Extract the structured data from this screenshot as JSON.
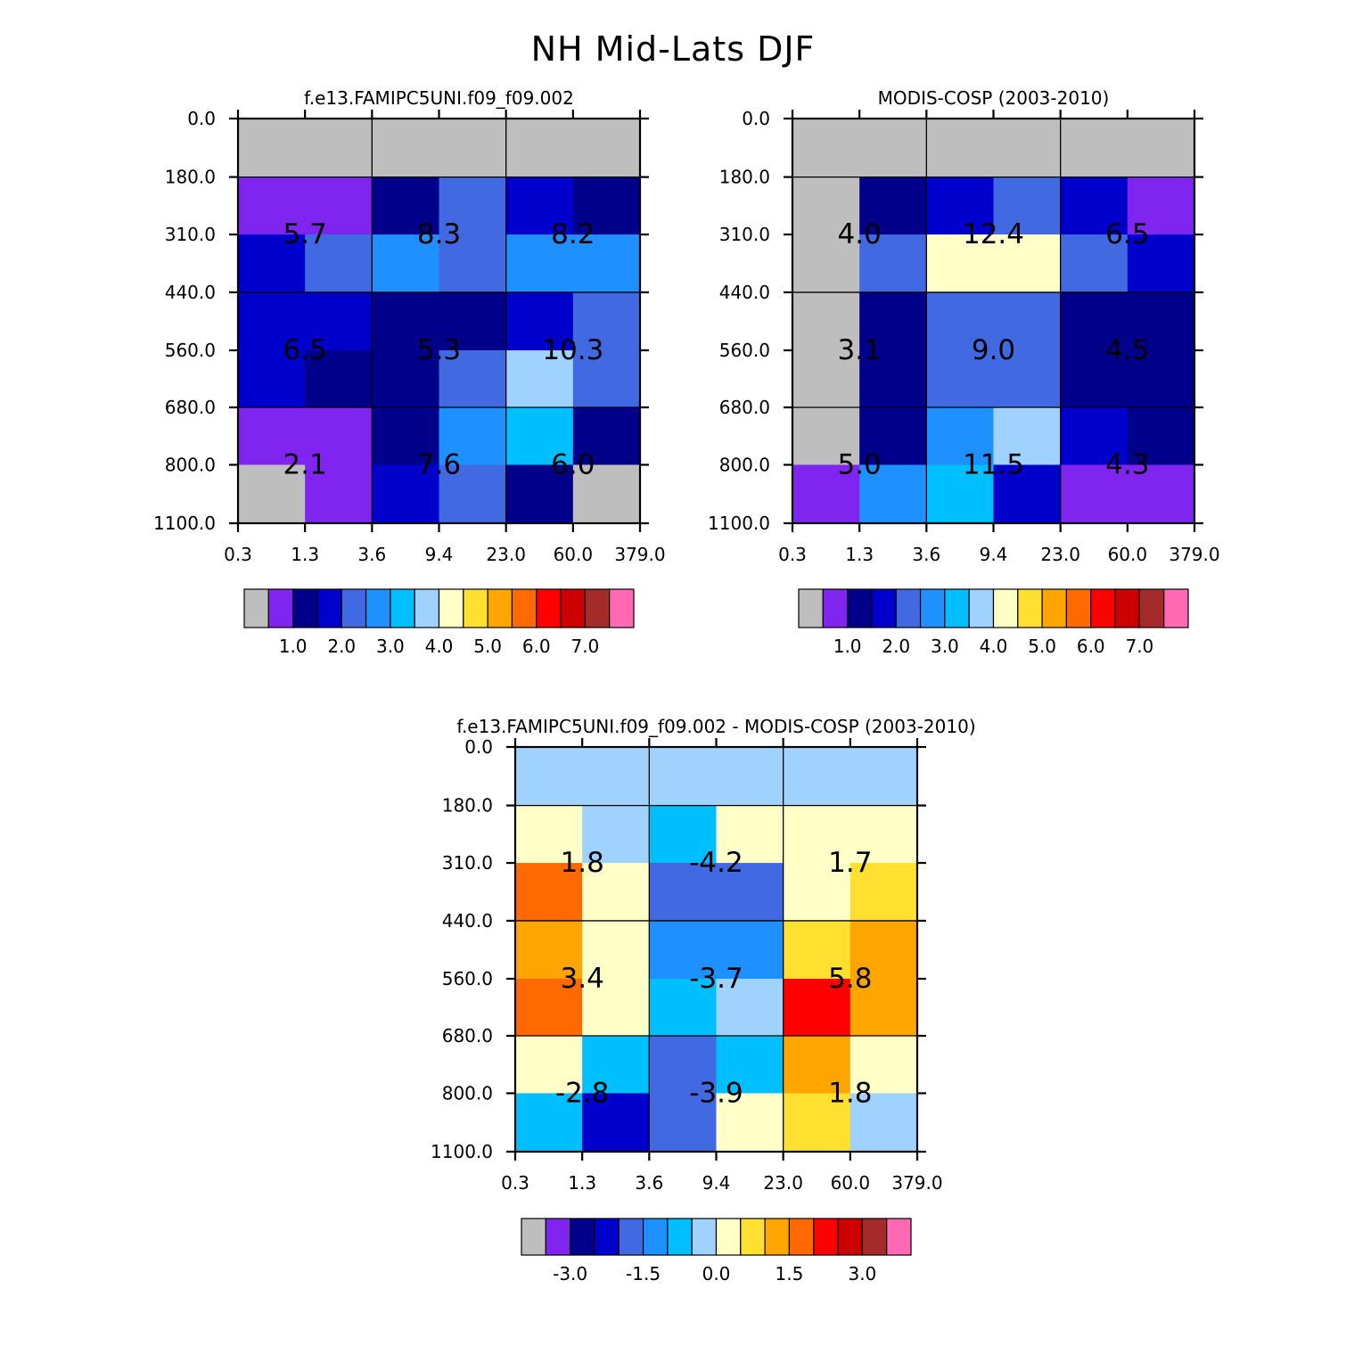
{
  "figure_title": "NH Mid-Lats DJF",
  "palette": [
    "#bebebe",
    "#8025ef",
    "#00008b",
    "#0000cd",
    "#4169e1",
    "#1e90ff",
    "#00bfff",
    "#a0d2ff",
    "#ffffc8",
    "#ffe030",
    "#ffa500",
    "#ff6a00",
    "#ff0000",
    "#cd0000",
    "#a52a2a",
    "#ff69b4"
  ],
  "chart_data": [
    {
      "type": "heatmap",
      "title": "f.e13.FAMIPC5UNI.f09_f09.002",
      "x_tick_labels": [
        "0.3",
        "1.3",
        "3.6",
        "9.4",
        "23.0",
        "60.0",
        "379.0"
      ],
      "y_tick_labels": [
        "0.0",
        "180.0",
        "310.0",
        "440.0",
        "560.0",
        "680.0",
        "800.0",
        "1100.0"
      ],
      "cell_color_index": [
        [
          0,
          0,
          0,
          0,
          0,
          0
        ],
        [
          1,
          1,
          2,
          4,
          3,
          2
        ],
        [
          3,
          4,
          5,
          4,
          5,
          5
        ],
        [
          3,
          3,
          2,
          2,
          3,
          4
        ],
        [
          3,
          2,
          2,
          4,
          7,
          4
        ],
        [
          1,
          1,
          2,
          5,
          6,
          2
        ],
        [
          0,
          1,
          3,
          4,
          2,
          0
        ]
      ],
      "block_values": [
        [
          "5.7",
          "8.3",
          "8.2"
        ],
        [
          "6.5",
          "5.3",
          "10.3"
        ],
        [
          "2.1",
          "7.6",
          "6.0"
        ]
      ],
      "colorbar_tick_labels": [
        "1.0",
        "2.0",
        "3.0",
        "4.0",
        "5.0",
        "6.0",
        "7.0"
      ]
    },
    {
      "type": "heatmap",
      "title": "MODIS-COSP (2003-2010)",
      "x_tick_labels": [
        "0.3",
        "1.3",
        "3.6",
        "9.4",
        "23.0",
        "60.0",
        "379.0"
      ],
      "y_tick_labels": [
        "0.0",
        "180.0",
        "310.0",
        "440.0",
        "560.0",
        "680.0",
        "800.0",
        "1100.0"
      ],
      "cell_color_index": [
        [
          0,
          0,
          0,
          0,
          0,
          0
        ],
        [
          0,
          2,
          3,
          4,
          3,
          1
        ],
        [
          0,
          4,
          8,
          8,
          4,
          3
        ],
        [
          0,
          2,
          4,
          4,
          2,
          2
        ],
        [
          0,
          2,
          4,
          4,
          2,
          2
        ],
        [
          0,
          2,
          5,
          7,
          3,
          2
        ],
        [
          1,
          5,
          6,
          3,
          1,
          1
        ]
      ],
      "block_values": [
        [
          "4.0",
          "12.4",
          "6.5"
        ],
        [
          "3.1",
          "9.0",
          "4.5"
        ],
        [
          "5.0",
          "11.5",
          "4.3"
        ]
      ],
      "colorbar_tick_labels": [
        "1.0",
        "2.0",
        "3.0",
        "4.0",
        "5.0",
        "6.0",
        "7.0"
      ]
    },
    {
      "type": "heatmap",
      "title": "f.e13.FAMIPC5UNI.f09_f09.002 - MODIS-COSP (2003-2010)",
      "x_tick_labels": [
        "0.3",
        "1.3",
        "3.6",
        "9.4",
        "23.0",
        "60.0",
        "379.0"
      ],
      "y_tick_labels": [
        "0.0",
        "180.0",
        "310.0",
        "440.0",
        "560.0",
        "680.0",
        "800.0",
        "1100.0"
      ],
      "cell_color_index": [
        [
          7,
          7,
          7,
          7,
          7,
          7
        ],
        [
          8,
          7,
          6,
          8,
          8,
          8
        ],
        [
          11,
          8,
          4,
          4,
          8,
          9
        ],
        [
          10,
          8,
          5,
          5,
          9,
          10
        ],
        [
          11,
          8,
          6,
          7,
          12,
          10
        ],
        [
          8,
          6,
          4,
          6,
          10,
          8
        ],
        [
          6,
          3,
          4,
          8,
          9,
          7
        ]
      ],
      "block_values": [
        [
          "1.8",
          "-4.2",
          "1.7"
        ],
        [
          "3.4",
          "-3.7",
          "5.8"
        ],
        [
          "-2.8",
          "-3.9",
          "1.8"
        ]
      ],
      "colorbar_tick_labels": [
        "-3.0",
        "-1.5",
        "0.0",
        "1.5",
        "3.0"
      ]
    }
  ]
}
